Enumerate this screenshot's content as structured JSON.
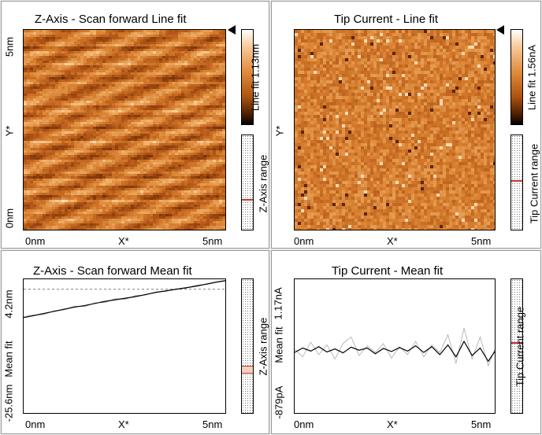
{
  "colors": {
    "panel_bg": "#ffffff",
    "window_bg": "#ececec",
    "z_image": "#d2782c",
    "tip_image": "#d97a26",
    "marker": "#c0392b"
  },
  "top_left": {
    "title": "Z-Axis - Scan forward   Line fit",
    "y_top": "5nm",
    "y_mid": "Y*",
    "y_bottom": "0nm",
    "x_left": "0nm",
    "x_mid": "X*",
    "x_right": "5nm",
    "colorbar_label": "Line fit 1.13nm",
    "range_label": "Z-Axis range",
    "arrow_icon": "left-triangle"
  },
  "top_right": {
    "title": "Tip Current - Line fit",
    "y_mid": "Y*",
    "x_left": "0nm",
    "x_mid": "X*",
    "x_right": "5nm",
    "colorbar_label": "Line fit 1.56nA",
    "range_label": "Tip Current range",
    "arrow_icon": "left-triangle"
  },
  "bottom_left": {
    "title": "Z-Axis - Scan forward   Mean fit",
    "y_top": "4.2nm",
    "y_mid": "Mean fit",
    "y_bottom": "-25.6nm",
    "x_left": "0nm",
    "x_mid": "X*",
    "x_right": "5nm",
    "range_label": "Z-Axis range"
  },
  "bottom_right": {
    "title": "Tip Current - Mean fit",
    "y_top": "1.17nA",
    "y_mid": "Mean fit",
    "y_bottom": "-879pA",
    "x_left": "0nm",
    "x_mid": "X*",
    "x_right": "5nm",
    "range_label": "Tip Current range"
  },
  "chart_data": [
    {
      "type": "line",
      "title": "Z-Axis - Scan forward   Mean fit",
      "xlabel": "X*",
      "ylabel": "Mean fit",
      "xlim": [
        0,
        5
      ],
      "ylim": [
        -25.6,
        4.2
      ],
      "series": [
        {
          "x": [
            0,
            0.25,
            0.5,
            0.75,
            1,
            1.25,
            1.5,
            1.75,
            2,
            2.25,
            2.5,
            2.75,
            3,
            3.25,
            3.5,
            3.75,
            4,
            4.25,
            4.5,
            4.75,
            5
          ],
          "values": [
            -1.8,
            -1.4,
            -1.0,
            -0.6,
            -0.2,
            0.2,
            0.5,
            0.9,
            1.3,
            1.6,
            1.9,
            2.2,
            2.6,
            3.0,
            3.3,
            3.6,
            3.9,
            4.2,
            4.6,
            5.0,
            5.3
          ]
        },
        {
          "x": [
            0,
            0.25,
            0.5,
            0.75,
            1,
            1.25,
            1.5,
            1.75,
            2,
            2.25,
            2.5,
            2.75,
            3,
            3.25,
            3.5,
            3.75,
            4,
            4.25,
            4.5,
            4.75,
            5
          ],
          "values": [
            -1.6,
            -1.3,
            -1.2,
            -0.5,
            -0.3,
            0.4,
            0.3,
            1.0,
            1.1,
            1.8,
            1.7,
            2.4,
            2.5,
            3.1,
            3.2,
            3.7,
            3.8,
            4.4,
            4.5,
            4.9,
            5.2
          ]
        }
      ]
    },
    {
      "type": "line",
      "title": "Tip Current - Mean fit",
      "xlabel": "X*",
      "ylabel": "Mean fit",
      "xlim": [
        0,
        5
      ],
      "ylim": [
        -0.879,
        1.17
      ],
      "series": [
        {
          "x": [
            0,
            0.2,
            0.4,
            0.6,
            0.8,
            1,
            1.2,
            1.4,
            1.6,
            1.8,
            2,
            2.2,
            2.4,
            2.6,
            2.8,
            3,
            3.2,
            3.4,
            3.6,
            3.8,
            4,
            4.2,
            4.4,
            4.6,
            4.8,
            5
          ],
          "values": [
            -0.05,
            0.05,
            -0.02,
            0.08,
            -0.04,
            0.03,
            -0.06,
            0.07,
            0.0,
            0.05,
            -0.08,
            0.04,
            -0.03,
            0.06,
            -0.02,
            0.1,
            -0.05,
            0.08,
            -0.1,
            0.12,
            -0.15,
            0.2,
            -0.12,
            0.05,
            -0.25,
            0.02
          ]
        },
        {
          "x": [
            0,
            0.2,
            0.4,
            0.6,
            0.8,
            1,
            1.2,
            1.4,
            1.6,
            1.8,
            2,
            2.2,
            2.4,
            2.6,
            2.8,
            3,
            3.2,
            3.4,
            3.6,
            3.8,
            4,
            4.2,
            4.4,
            4.6,
            4.8,
            5
          ],
          "values": [
            0.02,
            -0.15,
            0.18,
            -0.1,
            0.12,
            -0.2,
            0.15,
            0.3,
            -0.12,
            0.1,
            -0.05,
            0.15,
            -0.18,
            0.08,
            -0.1,
            0.2,
            -0.15,
            0.12,
            -0.05,
            0.35,
            -0.3,
            0.5,
            -0.2,
            0.3,
            -0.35,
            0.1
          ]
        }
      ]
    }
  ]
}
